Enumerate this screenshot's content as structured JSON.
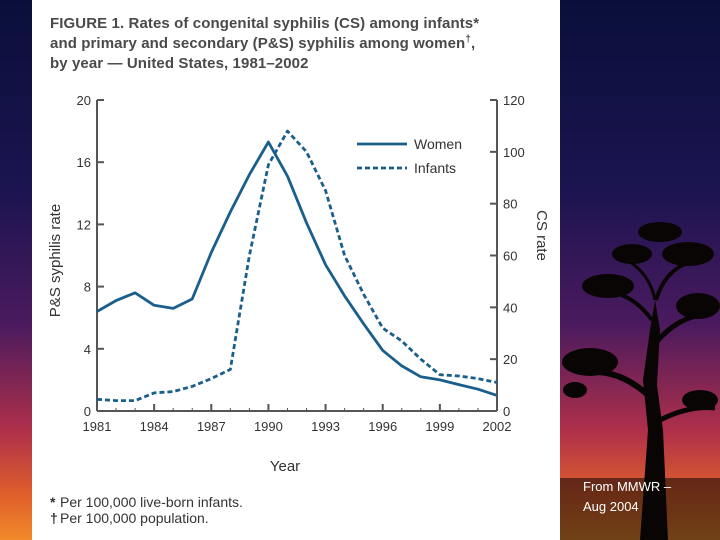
{
  "figure": {
    "title_line1": "FIGURE 1. Rates of congenital syphilis (CS) among infants*",
    "title_line2a": "and primary and secondary (P&S) syphilis among women",
    "title_line2_mark": "†",
    "title_line2b": ",",
    "title_line3": "by year — United States, 1981–2002"
  },
  "footnotes": [
    {
      "mark": "*",
      "text": "Per 100,000 live-born infants."
    },
    {
      "mark": "†",
      "text": "Per 100,000 population."
    }
  ],
  "credit": {
    "line1": "From MMWR –",
    "line2": "Aug 2004"
  },
  "chart_data": {
    "type": "line",
    "title": "Rates of congenital syphilis (CS) among infants and primary and secondary (P&S) syphilis among women, by year — United States, 1981–2002",
    "xlabel": "Year",
    "ylabel": "P&S syphilis rate",
    "y2label": "CS rate",
    "xlim": [
      1981,
      2002
    ],
    "ylim": [
      0,
      20
    ],
    "y2lim": [
      0,
      120
    ],
    "xticks": [
      "1981",
      "1984",
      "1987",
      "1990",
      "1993",
      "1996",
      "1999",
      "2002"
    ],
    "yticks": [
      "0",
      "4",
      "8",
      "12",
      "16",
      "20"
    ],
    "y2ticks": [
      "0",
      "20",
      "40",
      "60",
      "80",
      "100",
      "120"
    ],
    "legend_position": "top-right",
    "grid": false,
    "series": [
      {
        "name": "Women",
        "axis": "left",
        "style": "solid",
        "color": "#1a5e8c",
        "x": [
          1981,
          1982,
          1983,
          1984,
          1985,
          1986,
          1987,
          1988,
          1989,
          1990,
          1991,
          1992,
          1993,
          1994,
          1995,
          1996,
          1997,
          1998,
          1999,
          2000,
          2001,
          2002
        ],
        "values": [
          6.4,
          7.1,
          7.6,
          6.8,
          6.6,
          7.2,
          10.2,
          12.8,
          15.2,
          17.3,
          15.1,
          12.1,
          9.4,
          7.4,
          5.6,
          3.9,
          2.9,
          2.2,
          2.0,
          1.7,
          1.4,
          1.0
        ]
      },
      {
        "name": "Infants",
        "axis": "right",
        "style": "dashed",
        "color": "#1a5e8c",
        "x": [
          1981,
          1982,
          1983,
          1984,
          1985,
          1986,
          1987,
          1988,
          1989,
          1990,
          1991,
          1992,
          1993,
          1994,
          1995,
          1996,
          1997,
          1998,
          1999,
          2000,
          2001,
          2002
        ],
        "values": [
          4.5,
          4.0,
          4.0,
          7.0,
          7.5,
          9.5,
          12.5,
          16.0,
          60.0,
          95.0,
          108.0,
          100.0,
          85.0,
          60.0,
          45.0,
          32.0,
          27.0,
          20.0,
          14.0,
          13.5,
          12.5,
          11.0
        ]
      }
    ]
  }
}
